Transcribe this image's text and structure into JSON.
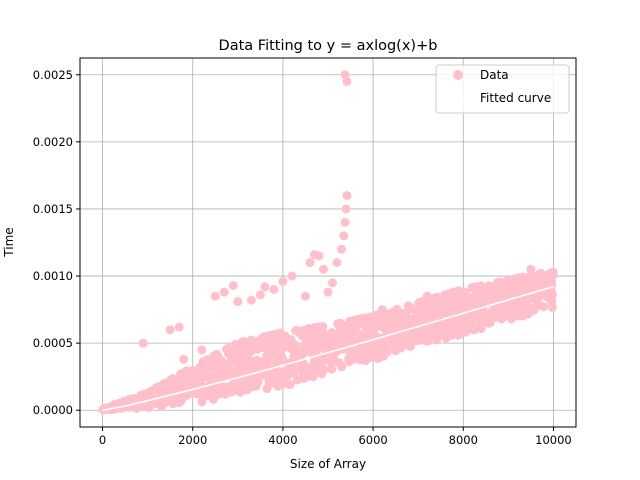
{
  "chart_data": {
    "type": "scatter",
    "title": "Data Fitting to y = axlog(x)+b",
    "xlabel": "Size of Array",
    "ylabel": "Time",
    "xlim": [
      -500,
      10500
    ],
    "ylim": [
      -0.000125,
      0.002625
    ],
    "xticks": [
      0,
      2000,
      4000,
      6000,
      8000,
      10000
    ],
    "xtick_labels": [
      "0",
      "2000",
      "4000",
      "6000",
      "8000",
      "10000"
    ],
    "yticks": [
      0.0,
      0.0005,
      0.001,
      0.0015,
      0.002,
      0.0025
    ],
    "ytick_labels": [
      "0.0000",
      "0.0005",
      "0.0010",
      "0.0015",
      "0.0020",
      "0.0025"
    ],
    "grid": true,
    "legend_position": "top-right",
    "series": [
      {
        "name": "Data",
        "kind": "scatter",
        "color": "#ffc0cb",
        "band_min": [
          [
            0,
            0.0
          ],
          [
            1000,
            1e-05
          ],
          [
            2000,
            3e-05
          ],
          [
            3000,
            8e-05
          ],
          [
            4000,
            0.00015
          ],
          [
            5000,
            0.00025
          ],
          [
            6000,
            0.00035
          ],
          [
            7000,
            0.00045
          ],
          [
            8000,
            0.00055
          ],
          [
            9000,
            0.00065
          ],
          [
            10000,
            0.00075
          ]
        ],
        "band_max": [
          [
            0,
            1e-05
          ],
          [
            1000,
            0.00013
          ],
          [
            2000,
            0.00032
          ],
          [
            3000,
            0.0005
          ],
          [
            4000,
            0.00058
          ],
          [
            5000,
            0.00063
          ],
          [
            6000,
            0.0007
          ],
          [
            7000,
            0.0008
          ],
          [
            8000,
            0.0009
          ],
          [
            9000,
            0.00097
          ],
          [
            10000,
            0.00104
          ]
        ],
        "outliers": [
          [
            900,
            0.0005
          ],
          [
            1500,
            0.0006
          ],
          [
            1700,
            0.00062
          ],
          [
            1800,
            0.00038
          ],
          [
            2200,
            0.00045
          ],
          [
            2500,
            0.00085
          ],
          [
            2700,
            0.00088
          ],
          [
            2900,
            0.00093
          ],
          [
            3000,
            0.00081
          ],
          [
            3300,
            0.00082
          ],
          [
            3500,
            0.00086
          ],
          [
            3600,
            0.00092
          ],
          [
            3800,
            0.0009
          ],
          [
            4000,
            0.00096
          ],
          [
            4200,
            0.001
          ],
          [
            4500,
            0.00085
          ],
          [
            4600,
            0.0011
          ],
          [
            4700,
            0.00116
          ],
          [
            4800,
            0.00115
          ],
          [
            4900,
            0.00105
          ],
          [
            5000,
            0.00088
          ],
          [
            5100,
            0.00095
          ],
          [
            5200,
            0.0011
          ],
          [
            5300,
            0.0012
          ],
          [
            5350,
            0.0013
          ],
          [
            5380,
            0.0014
          ],
          [
            5400,
            0.0015
          ],
          [
            5420,
            0.0016
          ],
          [
            5380,
            0.0025
          ],
          [
            5420,
            0.00245
          ],
          [
            6200,
            0.00075
          ],
          [
            6500,
            0.0007
          ],
          [
            7200,
            0.00085
          ],
          [
            7500,
            0.00083
          ],
          [
            8300,
            0.0009
          ],
          [
            9500,
            0.00105
          ]
        ]
      },
      {
        "name": "Fitted curve",
        "kind": "line",
        "color": "#ffffff",
        "equation_form": "y = a*x*log(x) + b",
        "points": [
          [
            0,
            0.0
          ],
          [
            500,
            3.1e-05
          ],
          [
            1000,
            7.1e-05
          ],
          [
            2000,
            0.000155
          ],
          [
            3000,
            0.000242
          ],
          [
            4000,
            0.000334
          ],
          [
            5000,
            0.000429
          ],
          [
            6000,
            0.000525
          ],
          [
            7000,
            0.000624
          ],
          [
            8000,
            0.000723
          ],
          [
            9000,
            0.000823
          ],
          [
            10000,
            0.00092
          ]
        ]
      }
    ]
  }
}
